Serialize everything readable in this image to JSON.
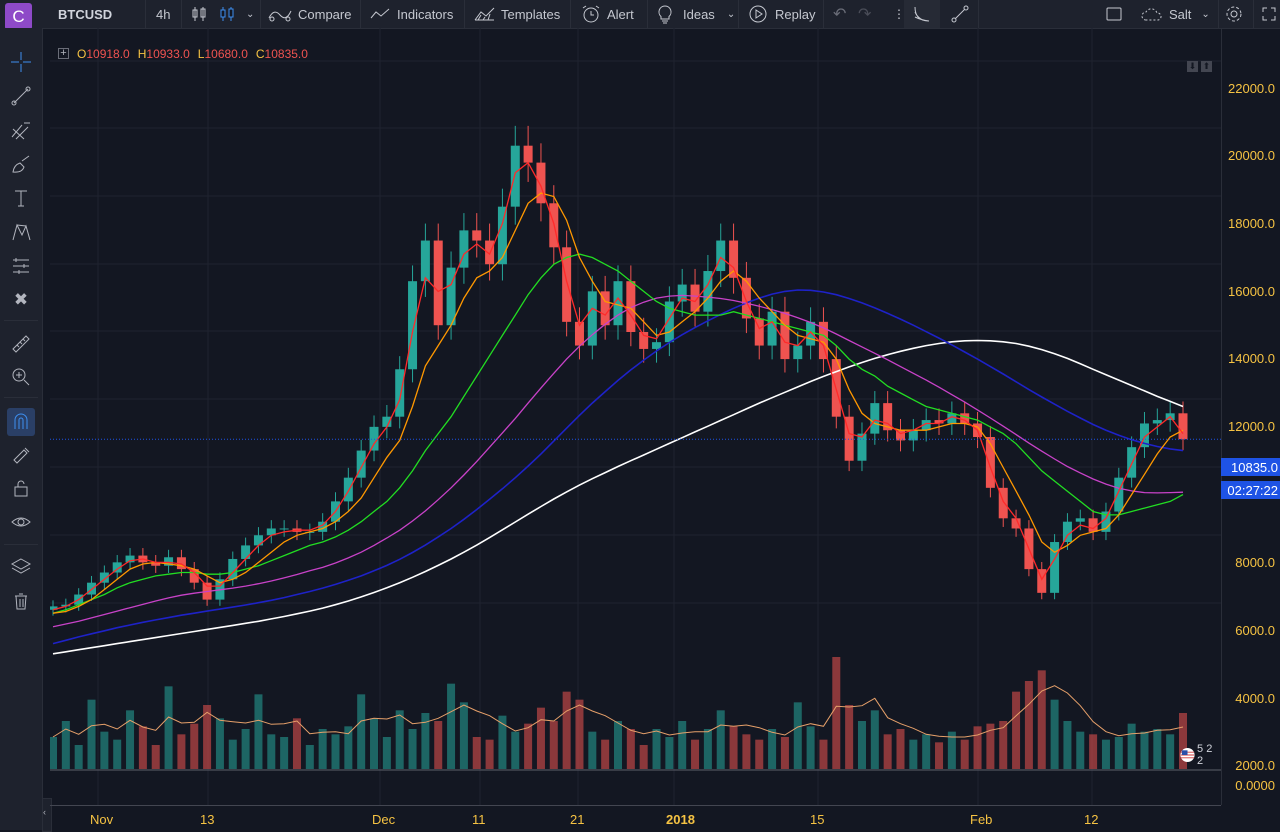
{
  "toolbar": {
    "logo_letter": "C",
    "symbol": "BTCUSD",
    "interval": "4h",
    "compare": "Compare",
    "indicators": "Indicators",
    "templates": "Templates",
    "alert": "Alert",
    "ideas": "Ideas",
    "replay": "Replay",
    "theme": "Salt"
  },
  "legend": {
    "o_key": "O",
    "o_val": "10918.0",
    "h_key": "H",
    "h_val": "10933.0",
    "l_key": "L",
    "l_val": "10680.0",
    "c_key": "C",
    "c_val": "10835.0"
  },
  "price_axis": {
    "ticks": [
      "22000.0",
      "20000.0",
      "18000.0",
      "16000.0",
      "14000.0",
      "12000.0",
      "10000.0",
      "8000.0",
      "6000.0",
      "4000.0",
      "2000.0",
      "0.0000"
    ],
    "last_price": "10835.0",
    "countdown": "02:27:22"
  },
  "time_axis": [
    "Nov",
    "13",
    "Dec",
    "11",
    "21",
    "2018",
    "15",
    "Feb",
    "12"
  ],
  "volume_badge": "5 2 2",
  "colors": {
    "up": "#26a69a",
    "down": "#ef5350",
    "ma_red": "#ff2a2a",
    "ma_orange": "#ff9800",
    "ma_green": "#22dd22",
    "ma_magenta": "#c842c8",
    "ma_blue": "#1e22c8",
    "ma_white": "#ffffff",
    "price_label": "#1e53e5"
  },
  "chart_data": {
    "type": "candlestick",
    "price_scale": [
      0,
      22000
    ],
    "closes": [
      5900,
      5950,
      6250,
      6600,
      6900,
      7200,
      7400,
      7200,
      7100,
      7350,
      7000,
      6600,
      6100,
      6700,
      7300,
      7700,
      8000,
      8200,
      8200,
      8100,
      8100,
      8400,
      9000,
      9700,
      10500,
      11200,
      11500,
      12900,
      15500,
      16700,
      14200,
      15900,
      17000,
      16700,
      16000,
      17700,
      19500,
      19000,
      17800,
      16500,
      14300,
      13600,
      15200,
      14200,
      15500,
      14000,
      13500,
      13700,
      14900,
      15400,
      14600,
      15800,
      16700,
      15600,
      14400,
      13600,
      14600,
      13200,
      13600,
      14300,
      13200,
      11500,
      10200,
      11000,
      11900,
      11100,
      10800,
      11100,
      11400,
      11300,
      11600,
      11300,
      10900,
      9400,
      8500,
      8200,
      7000,
      6300,
      7800,
      8400,
      8500,
      8100,
      8700,
      9700,
      10600,
      11300,
      11400,
      11600,
      10835
    ],
    "ma_short": [
      5800,
      5900,
      6100,
      6400,
      6700,
      7000,
      7250,
      7300,
      7200,
      7200,
      7150,
      6900,
      6500,
      6500,
      6900,
      7300,
      7700,
      8000,
      8100,
      8150,
      8150,
      8300,
      8700,
      9300,
      10000,
      10700,
      11200,
      12000,
      14000,
      15600,
      15200,
      15400,
      16300,
      16600,
      16300,
      17200,
      18700,
      19000,
      18300,
      17200,
      15500,
      14200,
      14700,
      14500,
      15000,
      14500,
      13900,
      13800,
      14400,
      15000,
      14900,
      15400,
      16200,
      15900,
      14900,
      14100,
      14300,
      13700,
      13600,
      14000,
      13600,
      12300,
      11000,
      10900,
      11400,
      11300,
      11000,
      11100,
      11300,
      11300,
      11500,
      11400,
      11100,
      10000,
      9000,
      8500,
      7600,
      6700,
      7300,
      8000,
      8300,
      8200,
      8500,
      9300,
      10100,
      10900,
      11200,
      11500,
      11000
    ],
    "ma_orange": [
      5700,
      5750,
      5900,
      6100,
      6400,
      6700,
      7000,
      7150,
      7200,
      7150,
      7100,
      7000,
      6800,
      6600,
      6700,
      6900,
      7200,
      7500,
      7800,
      8000,
      8100,
      8200,
      8400,
      8700,
      9100,
      9700,
      10300,
      10800,
      11800,
      13000,
      13600,
      14200,
      15000,
      15600,
      15800,
      16200,
      17000,
      17800,
      18100,
      18000,
      17300,
      16200,
      15500,
      14900,
      14800,
      14700,
      14300,
      13900,
      14000,
      14300,
      14600,
      15000,
      15500,
      15800,
      15500,
      15000,
      14600,
      14200,
      13900,
      13800,
      13700,
      13200,
      12300,
      11600,
      11300,
      11200,
      11100,
      11100,
      11100,
      11200,
      11300,
      11300,
      11200,
      10700,
      10000,
      9300,
      8600,
      7800,
      7500,
      7700,
      8000,
      8100,
      8200,
      8600,
      9200,
      9800,
      10400,
      10900,
      11100
    ],
    "ma_green": [
      5700,
      5800,
      5950,
      6100,
      6250,
      6450,
      6600,
      6700,
      6800,
      6850,
      6900,
      6900,
      6850,
      6850,
      6900,
      7000,
      7100,
      7250,
      7400,
      7550,
      7700,
      7800,
      7950,
      8150,
      8400,
      8700,
      9000,
      9400,
      9900,
      10500,
      11000,
      11500,
      12100,
      12700,
      13300,
      13900,
      14500,
      15100,
      15600,
      16000,
      16200,
      16300,
      16200,
      16000,
      15800,
      15500,
      15200,
      14900,
      14700,
      14600,
      14500,
      14500,
      14500,
      14600,
      14500,
      14400,
      14300,
      14200,
      14100,
      14000,
      13900,
      13600,
      13200,
      12900,
      12700,
      12400,
      12200,
      12000,
      11800,
      11700,
      11600,
      11500,
      11400,
      11200,
      11000,
      10700,
      10300,
      9900,
      9600,
      9300,
      9000,
      8700,
      8600,
      8600,
      8700,
      8800,
      8900,
      9000,
      9200
    ],
    "ma_magenta": [
      5300,
      5380,
      5460,
      5560,
      5660,
      5760,
      5860,
      5960,
      6060,
      6150,
      6230,
      6290,
      6340,
      6390,
      6440,
      6500,
      6570,
      6650,
      6740,
      6840,
      6950,
      7050,
      7180,
      7330,
      7500,
      7700,
      7920,
      8150,
      8420,
      8720,
      9050,
      9400,
      9780,
      10180,
      10600,
      11020,
      11450,
      11900,
      12350,
      12780,
      13200,
      13580,
      13920,
      14230,
      14500,
      14720,
      14880,
      15000,
      15060,
      15080,
      15060,
      15030,
      14990,
      14930,
      14850,
      14760,
      14660,
      14550,
      14420,
      14280,
      14120,
      13940,
      13750,
      13560,
      13370,
      13180,
      12980,
      12780,
      12580,
      12370,
      12150,
      11930,
      11700,
      11460,
      11220,
      10970,
      10720,
      10480,
      10250,
      10030,
      9840,
      9660,
      9510,
      9390,
      9310,
      9260,
      9250,
      9260,
      9270
    ],
    "ma_blue": [
      4800,
      4900,
      5000,
      5090,
      5180,
      5270,
      5350,
      5430,
      5500,
      5570,
      5640,
      5700,
      5760,
      5820,
      5880,
      5940,
      6010,
      6080,
      6160,
      6250,
      6340,
      6440,
      6550,
      6670,
      6800,
      6950,
      7110,
      7290,
      7490,
      7710,
      7950,
      8200,
      8470,
      8760,
      9060,
      9370,
      9700,
      10040,
      10400,
      10780,
      11160,
      11540,
      11900,
      12240,
      12570,
      12880,
      13170,
      13440,
      13690,
      13920,
      14130,
      14330,
      14520,
      14700,
      14860,
      15000,
      15120,
      15200,
      15240,
      15230,
      15180,
      15100,
      14990,
      14860,
      14710,
      14550,
      14380,
      14200,
      14010,
      13820,
      13620,
      13410,
      13200,
      12980,
      12760,
      12530,
      12300,
      12080,
      11870,
      11660,
      11460,
      11270,
      11100,
      10950,
      10820,
      10710,
      10620,
      10550,
      10500
    ],
    "ma_white": [
      4500,
      4560,
      4620,
      4680,
      4740,
      4800,
      4860,
      4920,
      4980,
      5040,
      5100,
      5160,
      5220,
      5280,
      5340,
      5400,
      5460,
      5530,
      5600,
      5680,
      5760,
      5850,
      5950,
      6060,
      6180,
      6310,
      6450,
      6600,
      6760,
      6930,
      7110,
      7300,
      7500,
      7710,
      7930,
      8160,
      8390,
      8620,
      8850,
      9070,
      9280,
      9480,
      9670,
      9850,
      10030,
      10200,
      10370,
      10540,
      10710,
      10880,
      11050,
      11220,
      11390,
      11560,
      11730,
      11900,
      12060,
      12220,
      12380,
      12540,
      12690,
      12830,
      12970,
      13100,
      13220,
      13330,
      13430,
      13520,
      13600,
      13660,
      13710,
      13740,
      13750,
      13740,
      13710,
      13660,
      13580,
      13480,
      13360,
      13220,
      13060,
      12900,
      12740,
      12580,
      12420,
      12260,
      12100,
      11950,
      11800
    ],
    "volumes": [
      1200,
      1800,
      900,
      2600,
      1400,
      1100,
      2200,
      1600,
      900,
      3100,
      1300,
      1700,
      2400,
      1900,
      1100,
      1500,
      2800,
      1300,
      1200,
      1900,
      900,
      1500,
      1300,
      1600,
      2800,
      1900,
      1200,
      2200,
      1500,
      2100,
      1800,
      3200,
      2500,
      1200,
      1100,
      2000,
      1400,
      1700,
      2300,
      1800,
      2900,
      2600,
      1400,
      1100,
      1800,
      1500,
      900,
      1500,
      1200,
      1800,
      1100,
      1500,
      2200,
      1600,
      1300,
      1100,
      1500,
      1200,
      2500,
      1600,
      1100,
      4200,
      2400,
      1800,
      2200,
      1300,
      1500,
      1100,
      1300,
      1000,
      1400,
      1100,
      1600,
      1700,
      1800,
      2900,
      3300,
      3700,
      2600,
      1800,
      1400,
      1300,
      1100,
      1200,
      1700,
      1400,
      1500,
      1300,
      2100
    ]
  }
}
